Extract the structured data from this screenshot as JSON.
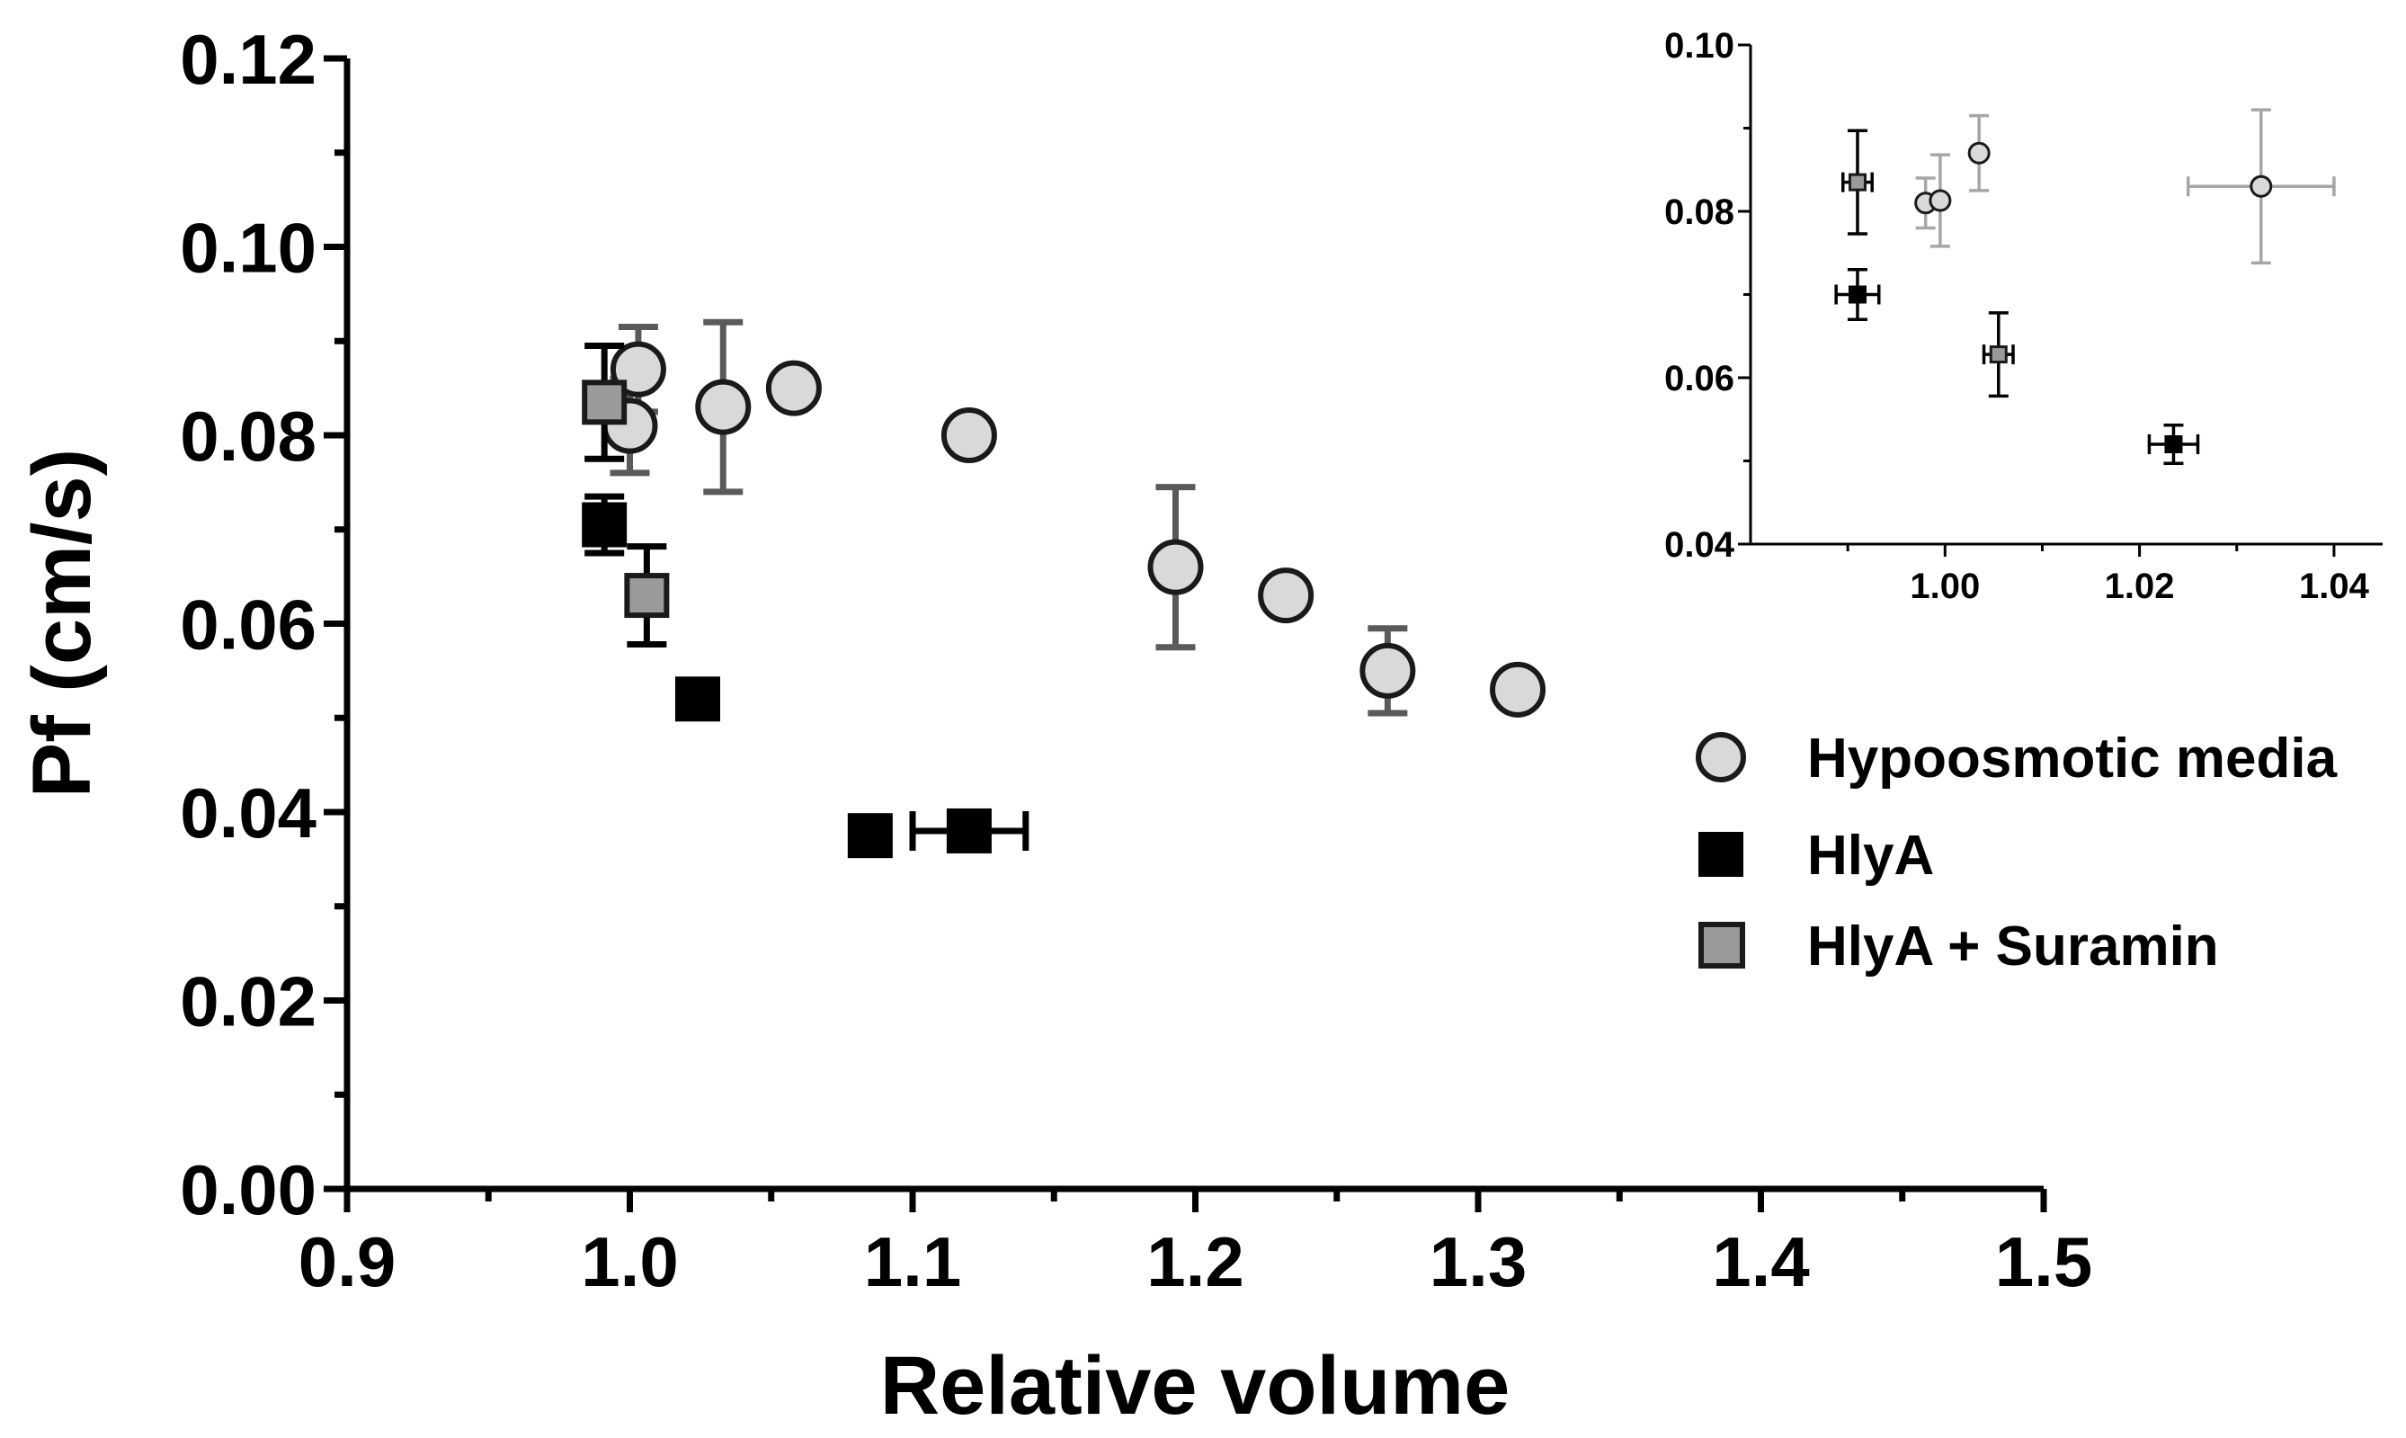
{
  "chart_data": [
    {
      "id": "main",
      "type": "scatter",
      "xlabel": "Relative volume",
      "ylabel": "Pf (cm/s)",
      "xlim": [
        0.9,
        1.5
      ],
      "ylim": [
        0.0,
        0.12
      ],
      "xticks": [
        0.9,
        1.0,
        1.1,
        1.2,
        1.3,
        1.4,
        1.5
      ],
      "xtick_labels": [
        "0.9",
        "1.0",
        "1.1",
        "1.2",
        "1.3",
        "1.4",
        "1.5"
      ],
      "yticks": [
        0.0,
        0.02,
        0.04,
        0.06,
        0.08,
        0.1,
        0.12
      ],
      "ytick_labels": [
        "0.00",
        "0.02",
        "0.04",
        "0.06",
        "0.08",
        "0.10",
        "0.12"
      ],
      "grid": false,
      "legend_position": "right",
      "series": [
        {
          "name": "Hypoosmotic media",
          "marker": "circle",
          "fill": "#d9d9d9",
          "error_color": "#5a5a5a",
          "points": [
            {
              "x": 1.0,
              "y": 0.081,
              "yerr": 0.005
            },
            {
              "x": 1.003,
              "y": 0.087,
              "yerr": 0.0045
            },
            {
              "x": 1.033,
              "y": 0.083,
              "yerr": 0.009
            },
            {
              "x": 1.058,
              "y": 0.085
            },
            {
              "x": 1.12,
              "y": 0.08,
              "xerr": 0.004
            },
            {
              "x": 1.193,
              "y": 0.066,
              "yerr": 0.0085
            },
            {
              "x": 1.232,
              "y": 0.063,
              "xerr": 0.005
            },
            {
              "x": 1.268,
              "y": 0.055,
              "yerr": 0.0045
            },
            {
              "x": 1.314,
              "y": 0.053
            }
          ]
        },
        {
          "name": "HlyA",
          "marker": "square",
          "fill": "#000000",
          "error_color": "#000000",
          "points": [
            {
              "x": 0.991,
              "y": 0.0705,
              "yerr": 0.003
            },
            {
              "x": 1.024,
              "y": 0.052
            },
            {
              "x": 1.085,
              "y": 0.0375
            },
            {
              "x": 1.12,
              "y": 0.038,
              "xerr": 0.02
            }
          ]
        },
        {
          "name": "HlyA + Suramin",
          "marker": "square",
          "fill": "#9a9a9a",
          "error_color": "#000000",
          "points": [
            {
              "x": 0.991,
              "y": 0.0835,
              "yerr": 0.006
            },
            {
              "x": 1.006,
              "y": 0.063,
              "yerr": 0.0052
            }
          ]
        }
      ]
    },
    {
      "id": "inset",
      "type": "scatter",
      "xlabel": "",
      "ylabel": "",
      "xlim": [
        0.98,
        1.045
      ],
      "ylim": [
        0.04,
        0.1
      ],
      "xticks": [
        1.0,
        1.02,
        1.04
      ],
      "xtick_labels": [
        "1.00",
        "1.02",
        "1.04"
      ],
      "yticks": [
        0.04,
        0.06,
        0.08,
        0.1
      ],
      "ytick_labels": [
        "0.04",
        "0.06",
        "0.08",
        "0.10"
      ],
      "grid": false,
      "series": [
        {
          "name": "Hypoosmotic media",
          "marker": "circle",
          "fill": "#d9d9d9",
          "error_color": "#a6a6a6",
          "points": [
            {
              "x": 0.998,
              "y": 0.081,
              "yerr": 0.003
            },
            {
              "x": 0.9995,
              "y": 0.0813,
              "yerr": 0.0055
            },
            {
              "x": 1.0035,
              "y": 0.087,
              "yerr": 0.0045
            },
            {
              "x": 1.0325,
              "y": 0.083,
              "xerr": 0.0075,
              "yerr": 0.0092
            }
          ]
        },
        {
          "name": "HlyA",
          "marker": "square",
          "fill": "#000000",
          "error_color": "#000000",
          "points": [
            {
              "x": 0.991,
              "y": 0.07,
              "xerr": 0.0022,
              "yerr": 0.003
            },
            {
              "x": 1.0235,
              "y": 0.052,
              "xerr": 0.0025,
              "yerr": 0.0023
            }
          ]
        },
        {
          "name": "HlyA + Suramin",
          "marker": "square",
          "fill": "#9a9a9a",
          "error_color": "#000000",
          "points": [
            {
              "x": 0.991,
              "y": 0.0835,
              "xerr": 0.0015,
              "yerr": 0.0062
            },
            {
              "x": 1.0055,
              "y": 0.0628,
              "xerr": 0.0015,
              "yerr": 0.005
            }
          ]
        }
      ]
    }
  ]
}
